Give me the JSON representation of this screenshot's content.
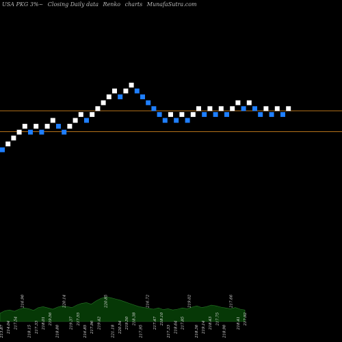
{
  "header": {
    "ticker": "USA PKG 3%~",
    "title": "Closing Daily data",
    "type": "Renko",
    "label": "charts",
    "site": "MunafaSutra.com"
  },
  "colors": {
    "background": "#000000",
    "up_brick": "#ffffff",
    "down_brick": "#1f7fff",
    "reference_line": "#b8741a",
    "volume_fill": "#063806",
    "volume_line": "#2a7a2a",
    "volume_text": "#e0e0e0"
  },
  "chart_data": {
    "type": "renko",
    "title": "Closing Daily data Renko charts",
    "price_levels": [
      {
        "name": "upper",
        "value": 226
      },
      {
        "name": "lower",
        "value": 218
      }
    ],
    "bricks": [
      {
        "level": 211,
        "dir": "down"
      },
      {
        "level": 212,
        "dir": "up"
      },
      {
        "level": 213,
        "dir": "up"
      },
      {
        "level": 214,
        "dir": "up"
      },
      {
        "level": 215,
        "dir": "up"
      },
      {
        "level": 214,
        "dir": "down"
      },
      {
        "level": 215,
        "dir": "up"
      },
      {
        "level": 214,
        "dir": "down"
      },
      {
        "level": 215,
        "dir": "up"
      },
      {
        "level": 216,
        "dir": "up"
      },
      {
        "level": 215,
        "dir": "down"
      },
      {
        "level": 214,
        "dir": "down"
      },
      {
        "level": 215,
        "dir": "up"
      },
      {
        "level": 216,
        "dir": "up"
      },
      {
        "level": 217,
        "dir": "up"
      },
      {
        "level": 216,
        "dir": "down"
      },
      {
        "level": 217,
        "dir": "up"
      },
      {
        "level": 218,
        "dir": "up"
      },
      {
        "level": 219,
        "dir": "up"
      },
      {
        "level": 220,
        "dir": "up"
      },
      {
        "level": 221,
        "dir": "up"
      },
      {
        "level": 220,
        "dir": "down"
      },
      {
        "level": 221,
        "dir": "up"
      },
      {
        "level": 222,
        "dir": "up"
      },
      {
        "level": 221,
        "dir": "down"
      },
      {
        "level": 220,
        "dir": "down"
      },
      {
        "level": 219,
        "dir": "down"
      },
      {
        "level": 218,
        "dir": "down"
      },
      {
        "level": 217,
        "dir": "down"
      },
      {
        "level": 216,
        "dir": "down"
      },
      {
        "level": 217,
        "dir": "up"
      },
      {
        "level": 216,
        "dir": "down"
      },
      {
        "level": 217,
        "dir": "up"
      },
      {
        "level": 216,
        "dir": "down"
      },
      {
        "level": 217,
        "dir": "up"
      },
      {
        "level": 218,
        "dir": "up"
      },
      {
        "level": 217,
        "dir": "down"
      },
      {
        "level": 218,
        "dir": "up"
      },
      {
        "level": 217,
        "dir": "down"
      },
      {
        "level": 218,
        "dir": "up"
      },
      {
        "level": 217,
        "dir": "down"
      },
      {
        "level": 218,
        "dir": "up"
      },
      {
        "level": 219,
        "dir": "up"
      },
      {
        "level": 218,
        "dir": "down"
      },
      {
        "level": 219,
        "dir": "up"
      },
      {
        "level": 218,
        "dir": "down"
      },
      {
        "level": 217,
        "dir": "down"
      },
      {
        "level": 218,
        "dir": "up"
      },
      {
        "level": 217,
        "dir": "down"
      },
      {
        "level": 218,
        "dir": "up"
      },
      {
        "level": 217,
        "dir": "down"
      },
      {
        "level": 218,
        "dir": "up"
      }
    ],
    "volume_series": [
      20,
      26,
      28,
      25,
      30,
      33,
      31,
      27,
      34,
      36,
      33,
      30,
      35,
      38,
      36,
      34,
      40,
      44,
      46,
      42,
      50,
      56,
      60,
      58,
      55,
      52,
      48,
      44,
      40,
      36,
      34,
      32,
      30,
      33,
      29,
      31,
      28,
      30,
      33,
      31,
      35,
      38,
      34,
      36,
      40,
      38,
      35,
      33,
      31,
      34,
      30,
      28
    ],
    "bottom_labels": [
      "213.87",
      "214.04",
      "217.54",
      "216.90",
      "218.15",
      "217.33",
      "218.01",
      "219.56",
      "218.80",
      "220.14",
      "219.37",
      "217.55",
      "216.85",
      "217.96",
      "219.42",
      "220.85",
      "221.18",
      "220.54",
      "219.50",
      "218.38",
      "217.95",
      "216.72",
      "217.47",
      "218.10",
      "217.33",
      "218.64",
      "217.85",
      "219.02",
      "218.36",
      "219.14",
      "218.43",
      "217.75",
      "218.90",
      "217.66",
      "218.41",
      "217.92"
    ]
  }
}
